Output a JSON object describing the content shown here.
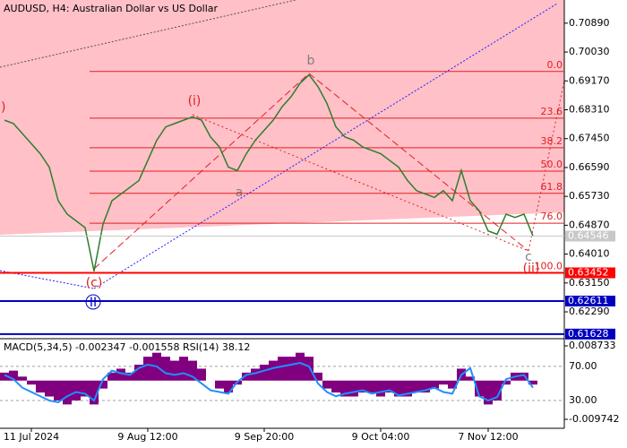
{
  "chart_data": [
    {
      "type": "line",
      "title": "AUDUSD, H4:  Australian Dollar vs US Dollar",
      "categories": [
        null,
        null,
        null,
        "11 Jul 2024",
        null,
        null,
        null,
        null,
        null,
        null,
        null,
        null,
        null,
        null,
        null,
        null,
        "9 Aug 12:00",
        null,
        null,
        null,
        null,
        null,
        null,
        null,
        null,
        null,
        null,
        null,
        null,
        "9 Sep 20:00",
        null,
        null,
        null,
        null,
        null,
        null,
        null,
        null,
        null,
        null,
        null,
        null,
        "9 Oct 04:00",
        null,
        null,
        null,
        null,
        null,
        null,
        null,
        null,
        null,
        null,
        null,
        "7 Nov 12:00",
        null,
        null,
        null,
        null,
        null
      ],
      "series": [
        {
          "name": "AUDUSD",
          "color": "#2f7d2f",
          "values": [
            0.68,
            0.679,
            0.676,
            0.673,
            0.67,
            0.666,
            0.656,
            0.652,
            0.65,
            0.648,
            0.635,
            0.649,
            0.656,
            0.658,
            0.66,
            0.662,
            0.668,
            0.674,
            0.678,
            0.679,
            0.68,
            0.681,
            0.68,
            0.675,
            0.672,
            0.666,
            0.665,
            0.67,
            0.674,
            0.677,
            0.68,
            0.684,
            0.687,
            0.691,
            0.6935,
            0.69,
            0.685,
            0.678,
            0.675,
            0.674,
            0.672,
            0.671,
            0.67,
            0.668,
            0.666,
            0.662,
            0.659,
            0.658,
            0.657,
            0.659,
            0.656,
            0.665,
            0.656,
            0.653,
            0.647,
            0.646,
            0.652,
            0.651,
            0.652,
            0.6455
          ]
        }
      ],
      "ylim": [
        0.6149,
        0.7158
      ],
      "yticks": [
        {
          "value": 0.7089,
          "label": "0.70890"
        },
        {
          "value": 0.7003,
          "label": "0.70030"
        },
        {
          "value": 0.6917,
          "label": "0.69170"
        },
        {
          "value": 0.6831,
          "label": "0.68310"
        },
        {
          "value": 0.6745,
          "label": "0.67450"
        },
        {
          "value": 0.6659,
          "label": "0.66590"
        },
        {
          "value": 0.6573,
          "label": "0.65730"
        },
        {
          "value": 0.6487,
          "label": "0.64870"
        },
        {
          "value": 0.6401,
          "label": "0.64010"
        },
        {
          "value": 0.6315,
          "label": "0.63150"
        },
        {
          "value": 0.6229,
          "label": "0.62290"
        }
      ],
      "fib_levels": [
        {
          "value": 0.6945,
          "label": "0.0"
        },
        {
          "value": 0.6806,
          "label": "23.6"
        },
        {
          "value": 0.6718,
          "label": "38.2"
        },
        {
          "value": 0.6648,
          "label": "50.0"
        },
        {
          "value": 0.6582,
          "label": "61.8"
        },
        {
          "value": 0.6493,
          "label": "76.0"
        },
        {
          "value": 0.6345,
          "label": "100.0"
        }
      ],
      "fib_color": "#e02020",
      "price_marks": [
        {
          "value": 0.64546,
          "color": "#c8c8c8"
        },
        {
          "value": 0.63452,
          "color": "#ff0000"
        },
        {
          "value": 0.62611,
          "color": "#0000c0"
        },
        {
          "value": 0.61628,
          "color": "#0000c0"
        }
      ],
      "annotations": [
        "b",
        "(i)",
        "a",
        "(c)",
        "II",
        "c",
        "(ii)",
        ")"
      ]
    },
    {
      "type": "macd",
      "title": "MACD(5,34,5) -0.002347 -0.001558 RSI(14) 38.12",
      "series": [
        {
          "name": "MACD",
          "color": "#800080",
          "values": [
            0.002,
            0.0025,
            0.001,
            -0.001,
            -0.003,
            -0.004,
            -0.005,
            -0.006,
            -0.005,
            -0.004,
            -0.006,
            -0.002,
            0.002,
            0.003,
            0.002,
            0.004,
            0.006,
            0.007,
            0.006,
            0.005,
            0.006,
            0.005,
            0.003,
            0.0,
            -0.002,
            -0.003,
            -0.001,
            0.002,
            0.003,
            0.004,
            0.005,
            0.006,
            0.006,
            0.007,
            0.006,
            0.002,
            -0.002,
            -0.003,
            -0.004,
            -0.004,
            -0.003,
            -0.003,
            -0.004,
            -0.003,
            -0.004,
            -0.004,
            -0.003,
            -0.003,
            -0.002,
            -0.001,
            -0.002,
            0.003,
            0.001,
            -0.004,
            -0.006,
            -0.005,
            -0.001,
            0.002,
            0.002,
            -0.001
          ]
        },
        {
          "name": "RSI",
          "color": "#1e90ff",
          "axis": "y2",
          "values": [
            60,
            55,
            45,
            40,
            35,
            30,
            28,
            35,
            40,
            38,
            30,
            55,
            65,
            62,
            60,
            68,
            72,
            70,
            62,
            60,
            62,
            58,
            50,
            42,
            40,
            38,
            52,
            60,
            62,
            65,
            68,
            70,
            72,
            74,
            70,
            50,
            40,
            35,
            38,
            40,
            42,
            38,
            40,
            42,
            36,
            38,
            40,
            42,
            45,
            40,
            38,
            60,
            68,
            35,
            30,
            34,
            55,
            58,
            60,
            45
          ]
        }
      ],
      "ylim": [
        -0.009742,
        0.008733
      ],
      "yticks": [
        0.008733,
        -0.009742
      ],
      "y2lim": [
        8,
        94
      ],
      "y2ticks": [
        {
          "value": 70,
          "label": "70.00"
        },
        {
          "value": 30,
          "label": "30.00"
        }
      ]
    }
  ]
}
